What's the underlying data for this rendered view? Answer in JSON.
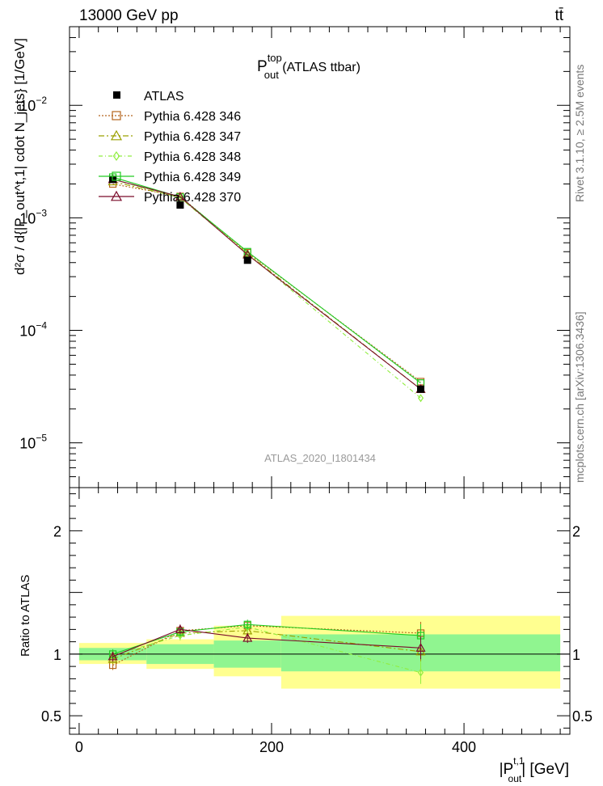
{
  "header": {
    "left": "13000 GeV pp",
    "right": "tt̄"
  },
  "side_texts": {
    "rivet": "Rivet 3.1.10, ≥ 2.5M events",
    "mcplots": "mcplots.cern.ch [arXiv:1306.3436]"
  },
  "chart_data": {
    "type": "line",
    "title_main": "P",
    "title_sup": "top",
    "title_sub": "out",
    "title_suffix": " (ATLAS ttbar)",
    "watermark": "ATLAS_2020_I1801434",
    "ylabel_main": "d²σ / d{|P_out^t,1| cdot N_jets} [1/GeV]",
    "ylabel_ratio": "Ratio to ATLAS",
    "xlabel_main": "|P",
    "xlabel_sup": "t,1",
    "xlabel_sub": "out",
    "xlabel_suffix": "| [GeV]",
    "xlim": [
      -10,
      510
    ],
    "ylim_main": [
      4e-06,
      0.05
    ],
    "log_y": true,
    "ylim_ratio": [
      0.35,
      2.35
    ],
    "x_ticks": [
      0,
      200,
      400
    ],
    "y_ticks_main": [
      {
        "value": 0.01,
        "base": "10",
        "exp": "−2"
      },
      {
        "value": 0.001,
        "base": "10",
        "exp": "−3"
      },
      {
        "value": 0.0001,
        "base": "10",
        "exp": "−4"
      },
      {
        "value": 1e-05,
        "base": "10",
        "exp": "−5"
      }
    ],
    "y_ticks_ratio": [
      {
        "value": 2,
        "label": "2"
      },
      {
        "value": 1,
        "label": "1"
      },
      {
        "value": 0.5,
        "label": "0.5"
      }
    ],
    "bins": [
      {
        "lo": 0,
        "hi": 70,
        "x": 35
      },
      {
        "lo": 70,
        "hi": 140,
        "x": 105
      },
      {
        "lo": 140,
        "hi": 210,
        "x": 175
      },
      {
        "lo": 210,
        "hi": 500,
        "x": 355
      }
    ],
    "data": {
      "name": "ATLAS",
      "values": [
        0.0022,
        0.0013,
        0.00042,
        3e-05
      ]
    },
    "bands": {
      "green": [
        [
          0.95,
          1.05
        ],
        [
          0.92,
          1.08
        ],
        [
          0.89,
          1.11
        ],
        [
          0.86,
          1.16
        ]
      ],
      "yellow": [
        [
          0.92,
          1.09
        ],
        [
          0.88,
          1.12
        ],
        [
          0.82,
          1.23
        ],
        [
          0.72,
          1.31
        ]
      ]
    },
    "series": [
      {
        "name": "Pythia 6.428 346",
        "color": "#b5651d",
        "dash": "2,2",
        "marker": "square",
        "values": [
          0.002,
          0.00155,
          0.00049,
          3.5e-05
        ],
        "ratio": [
          0.91,
          1.19,
          1.23,
          1.17
        ]
      },
      {
        "name": "Pythia 6.428 347",
        "color": "#9aa000",
        "dash": "7,3,2,3",
        "marker": "triangle",
        "values": [
          0.0021,
          0.00152,
          0.00048,
          3e-05
        ],
        "ratio": [
          0.96,
          1.17,
          1.19,
          1.02
        ]
      },
      {
        "name": "Pythia 6.428 348",
        "color": "#90ee40",
        "dash": "5,3,1,3",
        "marker": "diamond",
        "values": [
          0.0022,
          0.0015,
          0.00048,
          2.5e-05
        ],
        "ratio": [
          0.99,
          1.15,
          1.22,
          0.85
        ]
      },
      {
        "name": "Pythia 6.428 349",
        "color": "#22cc22",
        "dash": "",
        "marker": "square",
        "values": [
          0.0023,
          0.00153,
          0.0005,
          3.4e-05
        ],
        "ratio": [
          1.0,
          1.18,
          1.24,
          1.15
        ]
      },
      {
        "name": "Pythia 6.428 370",
        "color": "#7a0b2a",
        "dash": "",
        "marker": "triangle",
        "values": [
          0.0022,
          0.00154,
          0.00047,
          3e-05
        ],
        "ratio": [
          0.98,
          1.2,
          1.13,
          1.05
        ]
      }
    ]
  }
}
